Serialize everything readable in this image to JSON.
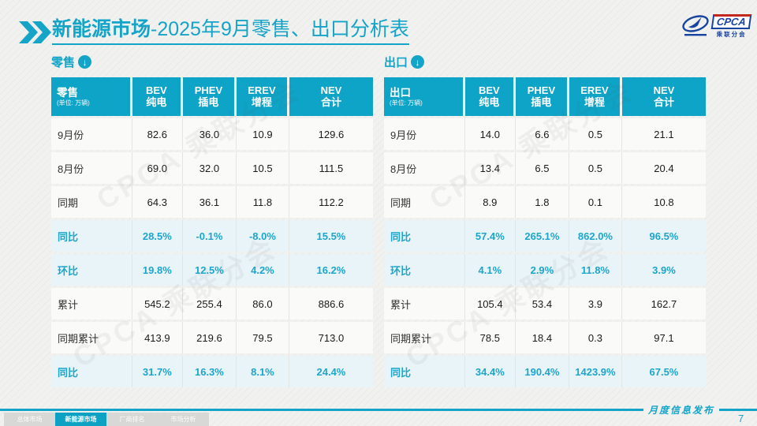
{
  "colors": {
    "accent": "#14a4c8",
    "header_bg": "#0da4c7",
    "highlight_bg": "#e9f4f9",
    "highlight_text": "#1ca6cb",
    "page_bg": "#f1f1ef",
    "logo_blue": "#17449e",
    "logo_red": "#c3281f"
  },
  "header": {
    "title_bold": "新能源市场",
    "title_rest": "-2025年9月零售、出口分析表"
  },
  "logo": {
    "name": "CPCA",
    "subtitle": "乘联分会"
  },
  "icons": {
    "section_arrow": "↓"
  },
  "watermark": "CPCA 乘联分会",
  "tables": [
    {
      "section_label": "零售",
      "header": {
        "label": "零售",
        "unit": "(单位: 万辆)",
        "columns": [
          {
            "en": "BEV",
            "cn": "纯电"
          },
          {
            "en": "PHEV",
            "cn": "插电"
          },
          {
            "en": "EREV",
            "cn": "增程"
          },
          {
            "en": "NEV",
            "cn": "合计"
          }
        ]
      },
      "rows": [
        {
          "label": "9月份",
          "values": [
            "82.6",
            "36.0",
            "10.9",
            "129.6"
          ],
          "highlight": false
        },
        {
          "label": "8月份",
          "values": [
            "69.0",
            "32.0",
            "10.5",
            "111.5"
          ],
          "highlight": false
        },
        {
          "label": "同期",
          "values": [
            "64.3",
            "36.1",
            "11.8",
            "112.2"
          ],
          "highlight": false
        },
        {
          "label": "同比",
          "values": [
            "28.5%",
            "-0.1%",
            "-8.0%",
            "15.5%"
          ],
          "highlight": true
        },
        {
          "label": "环比",
          "values": [
            "19.8%",
            "12.5%",
            "4.2%",
            "16.2%"
          ],
          "highlight": true
        },
        {
          "label": "累计",
          "values": [
            "545.2",
            "255.4",
            "86.0",
            "886.6"
          ],
          "highlight": false
        },
        {
          "label": "同期累计",
          "values": [
            "413.9",
            "219.6",
            "79.5",
            "713.0"
          ],
          "highlight": false
        },
        {
          "label": "同比",
          "values": [
            "31.7%",
            "16.3%",
            "8.1%",
            "24.4%"
          ],
          "highlight": true
        }
      ]
    },
    {
      "section_label": "出口",
      "header": {
        "label": "出口",
        "unit": "(单位: 万辆)",
        "columns": [
          {
            "en": "BEV",
            "cn": "纯电"
          },
          {
            "en": "PHEV",
            "cn": "插电"
          },
          {
            "en": "EREV",
            "cn": "增程"
          },
          {
            "en": "NEV",
            "cn": "合计"
          }
        ]
      },
      "rows": [
        {
          "label": "9月份",
          "values": [
            "14.0",
            "6.6",
            "0.5",
            "21.1"
          ],
          "highlight": false
        },
        {
          "label": "8月份",
          "values": [
            "13.4",
            "6.5",
            "0.5",
            "20.4"
          ],
          "highlight": false
        },
        {
          "label": "同期",
          "values": [
            "8.9",
            "1.8",
            "0.1",
            "10.8"
          ],
          "highlight": false
        },
        {
          "label": "同比",
          "values": [
            "57.4%",
            "265.1%",
            "862.0%",
            "96.5%"
          ],
          "highlight": true
        },
        {
          "label": "环比",
          "values": [
            "4.1%",
            "2.9%",
            "11.8%",
            "3.9%"
          ],
          "highlight": true
        },
        {
          "label": "累计",
          "values": [
            "105.4",
            "53.4",
            "3.9",
            "162.7"
          ],
          "highlight": false
        },
        {
          "label": "同期累计",
          "values": [
            "78.5",
            "18.4",
            "0.3",
            "97.1"
          ],
          "highlight": false
        },
        {
          "label": "同比",
          "values": [
            "34.4%",
            "190.4%",
            "1423.9%",
            "67.5%"
          ],
          "highlight": true
        }
      ]
    }
  ],
  "footer": {
    "publication": "月度信息发布",
    "page_number": "7",
    "tabs": [
      {
        "label": "总体市场",
        "active": false
      },
      {
        "label": "新能源市场",
        "active": true
      },
      {
        "label": "厂商排名",
        "active": false
      },
      {
        "label": "市场分析",
        "active": false
      }
    ]
  }
}
